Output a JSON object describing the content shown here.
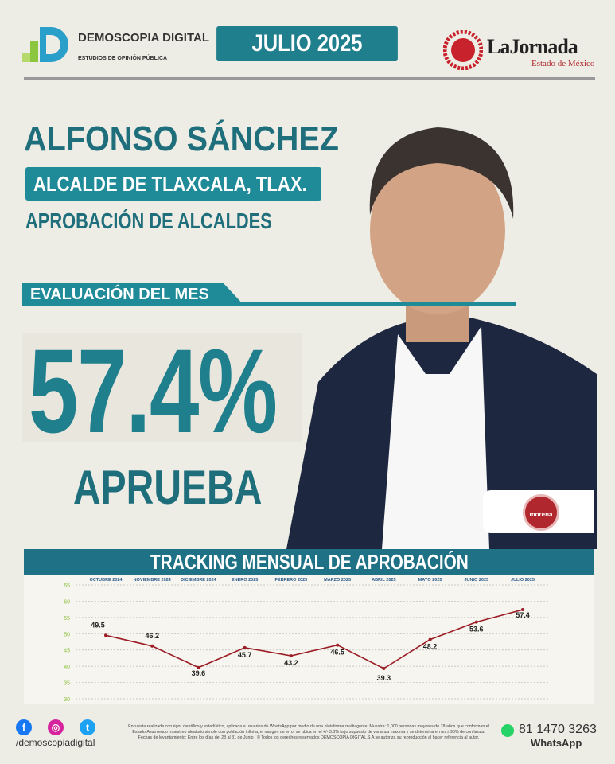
{
  "header": {
    "logo_name": "DEMOSCOPIA DIGITAL",
    "logo_tagline": "ESTUDIOS DE OPINIÓN PÚBLICA",
    "period": "JULIO 2025",
    "media_name": "LaJornada",
    "media_sub": "Estado de México"
  },
  "subject": {
    "name": "ALFONSO SÁNCHEZ",
    "role": "ALCALDE DE TLAXCALA, TLAX.",
    "category": "APROBACIÓN DE ALCALDES",
    "party": "morena"
  },
  "evaluation": {
    "label": "EVALUACIÓN DEL MES",
    "value": "57.4%",
    "verdict": "APRUEBA"
  },
  "colors": {
    "accent": "#1f7f8c",
    "line": "#9b1c24",
    "party": "#b0272d"
  },
  "chart_data": {
    "type": "line",
    "title": "TRACKING MENSUAL DE APROBACIÓN",
    "categories": [
      "OCTUBRE 2024",
      "NOVIEMBRE 2024",
      "DICIEMBRE 2024",
      "ENERO 2025",
      "FEBRERO 2025",
      "MARZO 2025",
      "ABRIL 2025",
      "MAYO 2025",
      "JUNIO 2025",
      "JULIO 2025"
    ],
    "values": [
      49.5,
      46.2,
      39.6,
      45.7,
      43.2,
      46.5,
      39.3,
      48.2,
      53.6,
      57.4
    ],
    "labels": [
      "49.5",
      "46.2",
      "39.6",
      "45.7",
      "43.2",
      "46.5",
      "39.3",
      "48.2",
      "53.6",
      "57.4"
    ],
    "ylim": [
      30,
      65
    ],
    "yticks": [
      "30",
      "35",
      "40",
      "45",
      "50",
      "55",
      "60",
      "65"
    ],
    "grid": true
  },
  "footer": {
    "social_icons": [
      "facebook-icon",
      "instagram-icon",
      "twitter-icon"
    ],
    "handle": "/demoscopiadigital",
    "disclaimer": "Encuesta realizada con rigor científico y estadístico, aplicada a usuarios de WhatsApp por medio de una plataforma multiagente. Muestra: 1,000 personas mayores de 18 años que conforman el Estado.Asumiendo muestreo aleatorio simple con población infinita, el margen de error se ubica en el +/- 3.8% bajo supuesto de varianza máxima y se determina en un ± 95% de confianza. Fechas de levantamiento: Entre los días del 28 al 31 de Junio . © Todos los derechos reservados DEMOSCOPIA DIGITAL,S.A se autoriza su reproducción al hacer referencia al autor.",
    "phone": "81 1470 3263",
    "phone_channel": "WhatsApp"
  }
}
